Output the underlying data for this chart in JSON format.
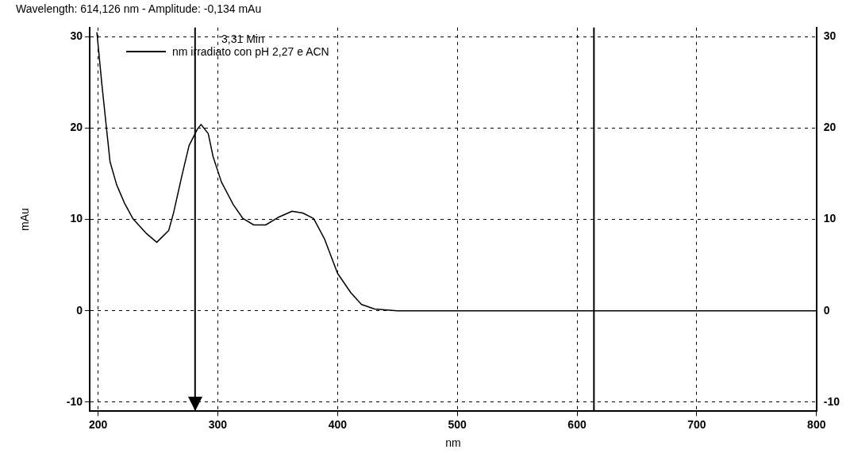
{
  "chart_data": {
    "type": "line",
    "title": "Wavelength: 614,126 nm - Amplitude: -0,134 mAu",
    "xlabel": "nm",
    "ylabel": "mAu",
    "legend_title": "3,31 Min",
    "legend": "top left",
    "series": [
      {
        "name": "nm irradiato con pH 2,27 e ACN",
        "color": "#000000",
        "x": [
          199,
          203,
          207,
          210,
          215.5,
          222,
          229,
          240,
          249,
          259,
          263,
          270,
          276,
          283,
          286,
          292,
          296,
          303,
          313,
          321,
          330,
          340,
          350,
          362,
          371,
          380,
          389,
          400,
          411,
          420,
          431,
          450,
          500,
          550,
          600,
          650,
          655,
          700,
          750,
          800
        ],
        "values": [
          30.5,
          25,
          20,
          16.3,
          13.8,
          11.8,
          10.1,
          8.5,
          7.5,
          8.8,
          10.7,
          14.8,
          18.1,
          19.9,
          20.4,
          19.4,
          16.9,
          14.1,
          11.6,
          10.1,
          9.4,
          9.4,
          10.2,
          10.9,
          10.7,
          10.1,
          7.9,
          4.1,
          2.0,
          0.7,
          0.2,
          0,
          0,
          0,
          0,
          0,
          0,
          0,
          0,
          0
        ]
      }
    ],
    "xlim": [
      193,
      800
    ],
    "xticks": [
      200,
      300,
      400,
      500,
      600,
      700,
      800
    ],
    "ylim": [
      -11,
      31
    ],
    "yticks": [
      -10,
      0,
      10,
      20,
      30
    ],
    "y2lim": [
      -11,
      31
    ],
    "y2ticks": [
      -10,
      0,
      10,
      20,
      30
    ],
    "ref_lines": [
      {
        "axis": "x",
        "value": 281,
        "color": "#000000"
      },
      {
        "axis": "x",
        "value": 614.126,
        "color": "#000000"
      }
    ],
    "grid": true,
    "marker": "none",
    "line_style": "solid"
  }
}
